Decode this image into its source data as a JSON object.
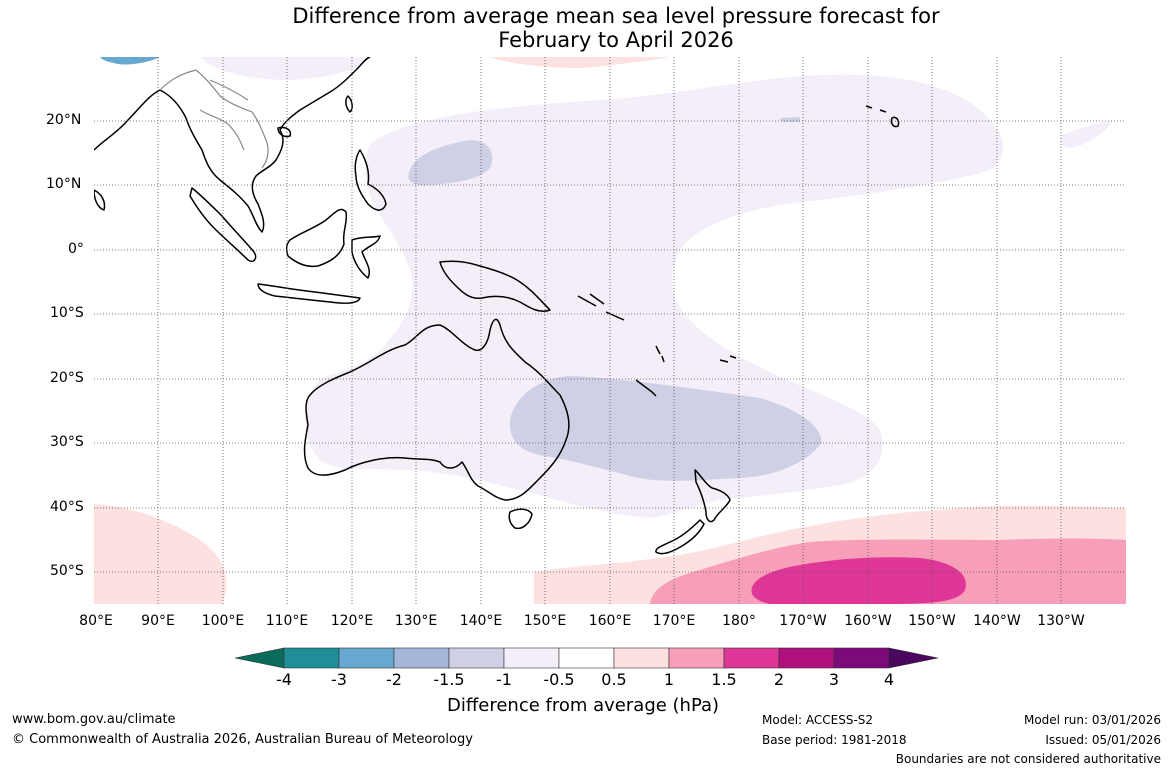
{
  "title": {
    "line1": "Difference from average mean sea level pressure forecast for",
    "line2": "February to April 2026"
  },
  "map": {
    "lat_labels": [
      "20°N",
      "10°N",
      "0°",
      "10°S",
      "20°S",
      "30°S",
      "40°S",
      "50°S"
    ],
    "lon_labels": [
      "80°E",
      "90°E",
      "100°E",
      "110°E",
      "120°E",
      "130°E",
      "140°E",
      "150°E",
      "160°E",
      "170°E",
      "180°",
      "170°W",
      "160°W",
      "150°W",
      "140°W",
      "130°W"
    ],
    "extent": {
      "lon_min": 80,
      "lon_max": 240,
      "lat_min": -55,
      "lat_max": 30
    }
  },
  "colorbar": {
    "title": "Difference from average (hPa)",
    "ticks": [
      "-4",
      "-3",
      "-2",
      "-1.5",
      "-1",
      "-0.5",
      "0.5",
      "1",
      "1.5",
      "2",
      "3",
      "4"
    ],
    "colors": {
      "below_min": "#0b6b5b",
      "bin_-4_-3": "#1e8e98",
      "bin_-3_-2": "#68a8d0",
      "bin_-2_-1.5": "#a4b7d8",
      "bin_-1.5_-1": "#cfd0e5",
      "bin_-1_-0.5": "#f3eef7",
      "bin_-0.5_0.5": "#ffffff",
      "bin_0.5_1": "#fde0e0",
      "bin_1_1.5": "#f79fb8",
      "bin_1.5_2": "#de3797",
      "bin_2_3": "#b0107e",
      "bin_3_4": "#7d0a7b",
      "above_max": "#4a075e"
    }
  },
  "footer": {
    "website": "www.bom.gov.au/climate",
    "copyright": "© Commonwealth of Australia 2026, Australian Bureau of Meteorology",
    "model": "Model: ACCESS-S2",
    "base_period": "Base period: 1981-2018",
    "model_run": "Model run: 03/01/2026",
    "issued": "Issued: 05/01/2026",
    "disclaimer": "Boundaries are not considered authoritative"
  }
}
